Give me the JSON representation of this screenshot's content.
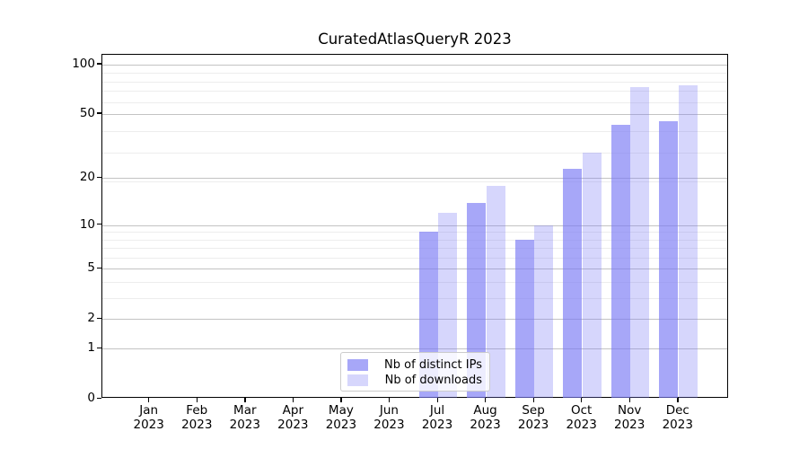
{
  "title": "CuratedAtlasQueryR 2023",
  "colors": {
    "series_base": "#7878f5",
    "ips_fill": "rgba(120,120,245,0.65)",
    "downloads_fill": "rgba(120,120,245,0.30)",
    "ips_apparent": "#a7a7fa",
    "downloads_apparent": "#d9d9fa",
    "grid_major": "#c3c3c3",
    "grid_minor": "#ededed"
  },
  "chart_data": {
    "type": "bar",
    "title": "CuratedAtlasQueryR 2023",
    "categories": [
      "Jan 2023",
      "Feb 2023",
      "Mar 2023",
      "Apr 2023",
      "May 2023",
      "Jun 2023",
      "Jul 2023",
      "Aug 2023",
      "Sep 2023",
      "Oct 2023",
      "Nov 2023",
      "Dec 2023"
    ],
    "series": [
      {
        "name": "Nb of distinct IPs",
        "values": [
          0,
          0,
          0,
          0,
          0,
          0,
          9,
          14,
          8,
          23,
          43,
          45
        ]
      },
      {
        "name": "Nb of downloads",
        "values": [
          0,
          0,
          0,
          0,
          0,
          0,
          12,
          18,
          10,
          29,
          73,
          75
        ]
      }
    ],
    "xlabel": "",
    "ylabel": "",
    "yscale": "log1p",
    "yticks": [
      0,
      1,
      2,
      5,
      10,
      20,
      50,
      100
    ],
    "ylim": [
      0,
      115
    ],
    "grid": true,
    "legend_position": "lower center"
  }
}
